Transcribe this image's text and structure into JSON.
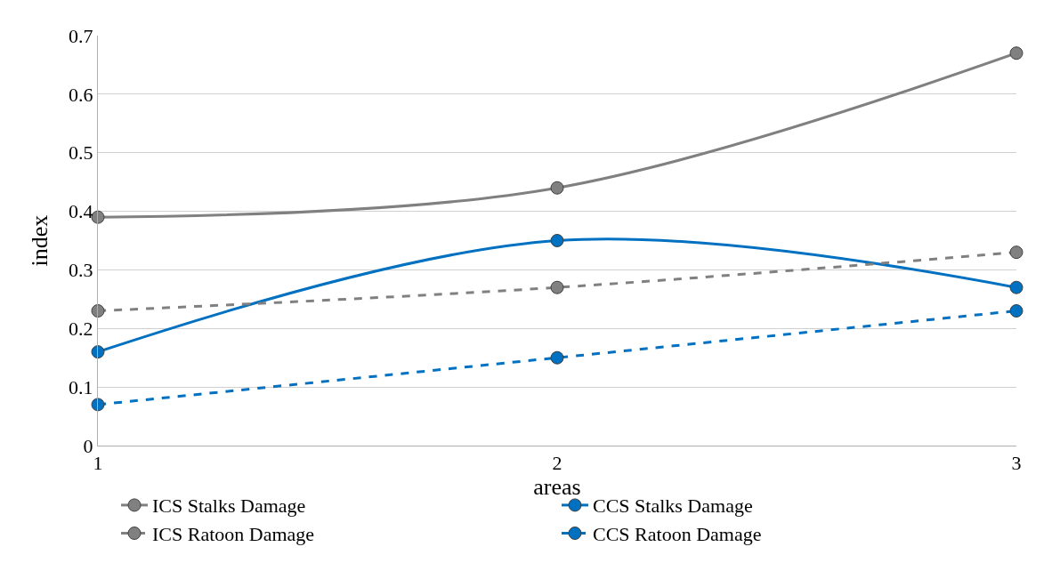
{
  "chart_data": {
    "type": "line",
    "xlabel": "areas",
    "ylabel": "index",
    "x": [
      1,
      2,
      3
    ],
    "series": [
      {
        "name": "ICS Stalks Damage",
        "color": "#808080",
        "values": [
          0.39,
          0.44,
          0.67
        ],
        "line_style": "solid"
      },
      {
        "name": "CCS Stalks Damage",
        "color": "#0070c0",
        "values": [
          0.16,
          0.35,
          0.27
        ],
        "line_style": "solid"
      },
      {
        "name": "ICS Ratoon Damage",
        "color": "#808080",
        "values": [
          0.23,
          0.27,
          0.33
        ],
        "line_style": "dashed"
      },
      {
        "name": "CCS Ratoon Damage",
        "color": "#0070c0",
        "values": [
          0.07,
          0.15,
          0.23
        ],
        "line_style": "dashed"
      }
    ],
    "xlim": [
      1,
      3
    ],
    "xticks": [
      1,
      2,
      3
    ],
    "ylim": [
      0,
      0.7
    ],
    "yticks": [
      0,
      0.1,
      0.2,
      0.3,
      0.4,
      0.5,
      0.6,
      0.7
    ],
    "grid": "y",
    "legend": "bottom",
    "marker": "circle"
  }
}
